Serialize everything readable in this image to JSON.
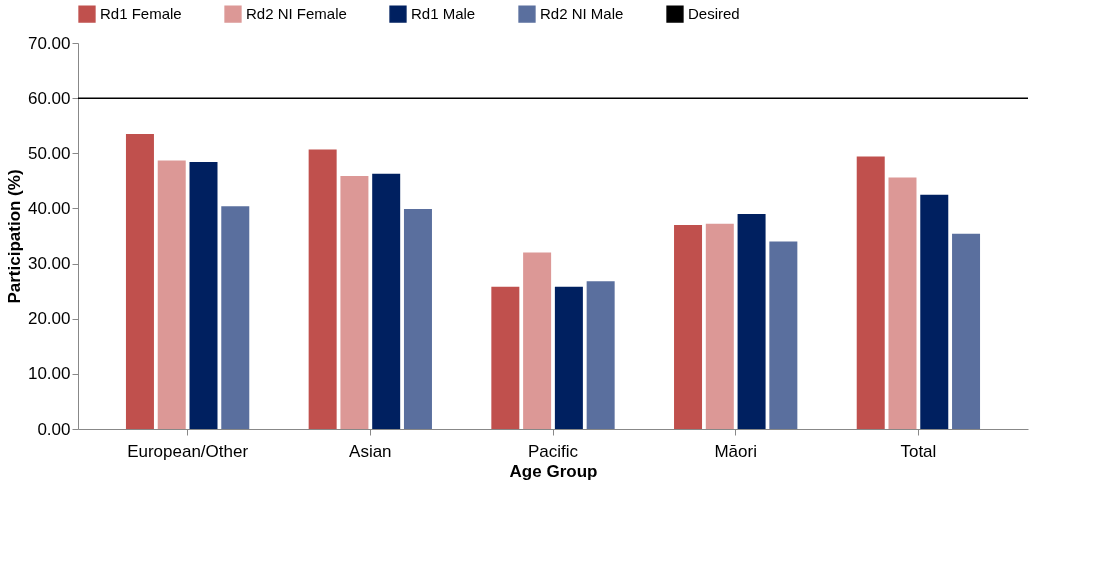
{
  "chart_data": {
    "type": "bar",
    "xlabel": "Age Group",
    "ylabel": "Participation (%)",
    "categories": [
      "European/Other",
      "Asian",
      "Pacific",
      "Māori",
      "Total"
    ],
    "series": [
      {
        "name": "Rd1 Female",
        "color": "#c0504d",
        "values": [
          53.5,
          50.7,
          25.8,
          37.0,
          49.4
        ]
      },
      {
        "name": "Rd2 NI Female",
        "color": "#dc9896",
        "values": [
          48.7,
          45.9,
          32.0,
          37.2,
          45.6
        ]
      },
      {
        "name": "Rd1 Male",
        "color": "#002060",
        "values": [
          48.4,
          46.3,
          25.8,
          39.0,
          42.5
        ]
      },
      {
        "name": "Rd2 NI Male",
        "color": "#5a6f9e",
        "values": [
          40.4,
          39.9,
          26.8,
          34.0,
          35.4
        ]
      }
    ],
    "ref_lines": [
      {
        "axis": "y",
        "value": 60,
        "label": "Desired",
        "color": "#000000"
      }
    ],
    "ylim": [
      0,
      70
    ],
    "yticks": [
      {
        "value": 0,
        "label": "0.00"
      },
      {
        "value": 10,
        "label": "10.00"
      },
      {
        "value": 20,
        "label": "20.00"
      },
      {
        "value": 30,
        "label": "30.00"
      },
      {
        "value": 40,
        "label": "40.00"
      },
      {
        "value": 50,
        "label": "50.00"
      },
      {
        "value": 60,
        "label": "60.00"
      },
      {
        "value": 70,
        "label": "70.00"
      }
    ],
    "grid": false,
    "legend": "top"
  }
}
